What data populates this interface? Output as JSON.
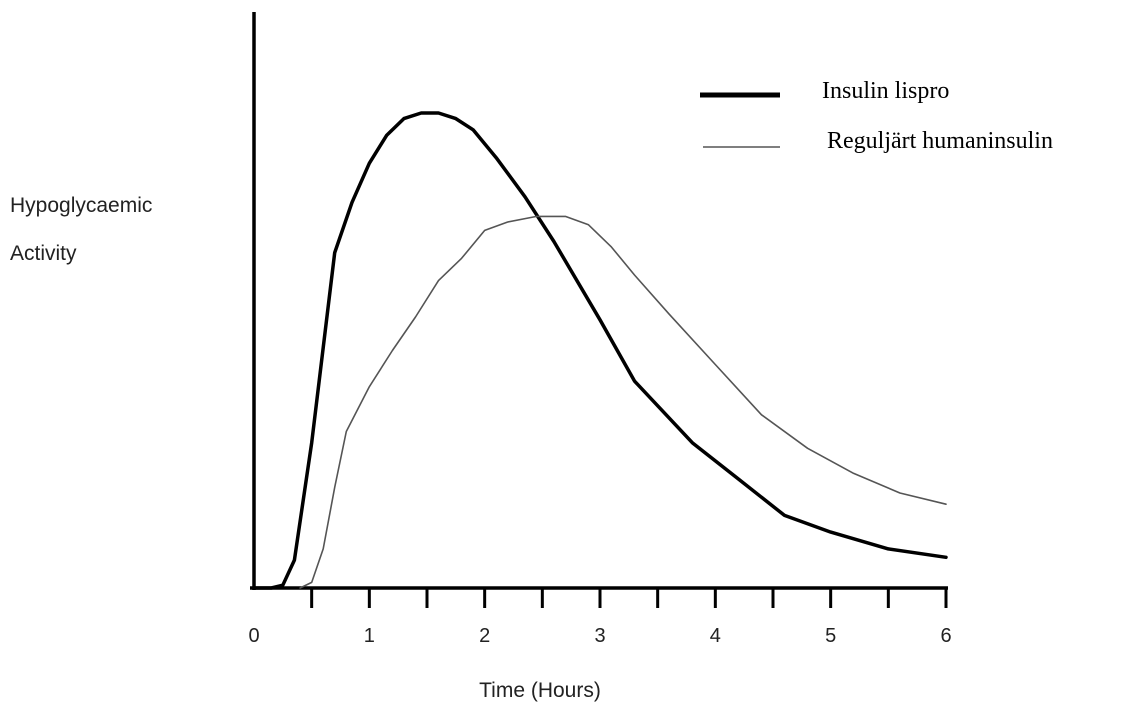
{
  "chart_data": {
    "type": "line",
    "title": "",
    "xlabel": "Time (Hours)",
    "ylabel_lines": [
      "Hypoglycaemic",
      "Activity"
    ],
    "xlim": [
      0,
      6
    ],
    "ylim": [
      0,
      100
    ],
    "x_ticks": [
      "0",
      "1",
      "2",
      "3",
      "4",
      "5",
      "6"
    ],
    "grid": false,
    "legend_position": "top-right",
    "series": [
      {
        "name": "Insulin lispro",
        "color": "#000000",
        "style": "thick",
        "points": [
          [
            0,
            0
          ],
          [
            0.15,
            0
          ],
          [
            0.25,
            0.5
          ],
          [
            0.35,
            5
          ],
          [
            0.5,
            26
          ],
          [
            0.7,
            60
          ],
          [
            0.85,
            69
          ],
          [
            1.0,
            76
          ],
          [
            1.15,
            81
          ],
          [
            1.3,
            84
          ],
          [
            1.45,
            85
          ],
          [
            1.6,
            85
          ],
          [
            1.75,
            84
          ],
          [
            1.9,
            82
          ],
          [
            2.1,
            77
          ],
          [
            2.35,
            70
          ],
          [
            2.6,
            62
          ],
          [
            3.0,
            48
          ],
          [
            3.3,
            37
          ],
          [
            3.8,
            26
          ],
          [
            4.2,
            19.5
          ],
          [
            4.6,
            13
          ],
          [
            5.0,
            10
          ],
          [
            5.5,
            7
          ],
          [
            6.0,
            5.5
          ]
        ]
      },
      {
        "name": "Reguljärt humaninsulin",
        "color": "#555555",
        "style": "thin",
        "points": [
          [
            0.4,
            0
          ],
          [
            0.5,
            1
          ],
          [
            0.6,
            7
          ],
          [
            0.7,
            18
          ],
          [
            0.8,
            28
          ],
          [
            1.0,
            36
          ],
          [
            1.2,
            42.5
          ],
          [
            1.4,
            48.5
          ],
          [
            1.6,
            55
          ],
          [
            1.8,
            59
          ],
          [
            2.0,
            64
          ],
          [
            2.2,
            65.5
          ],
          [
            2.45,
            66.5
          ],
          [
            2.7,
            66.5
          ],
          [
            2.9,
            65
          ],
          [
            3.1,
            61
          ],
          [
            3.3,
            56
          ],
          [
            3.6,
            49
          ],
          [
            4.0,
            40
          ],
          [
            4.4,
            31
          ],
          [
            4.8,
            25
          ],
          [
            5.2,
            20.5
          ],
          [
            5.6,
            17
          ],
          [
            6.0,
            15
          ]
        ]
      }
    ]
  }
}
